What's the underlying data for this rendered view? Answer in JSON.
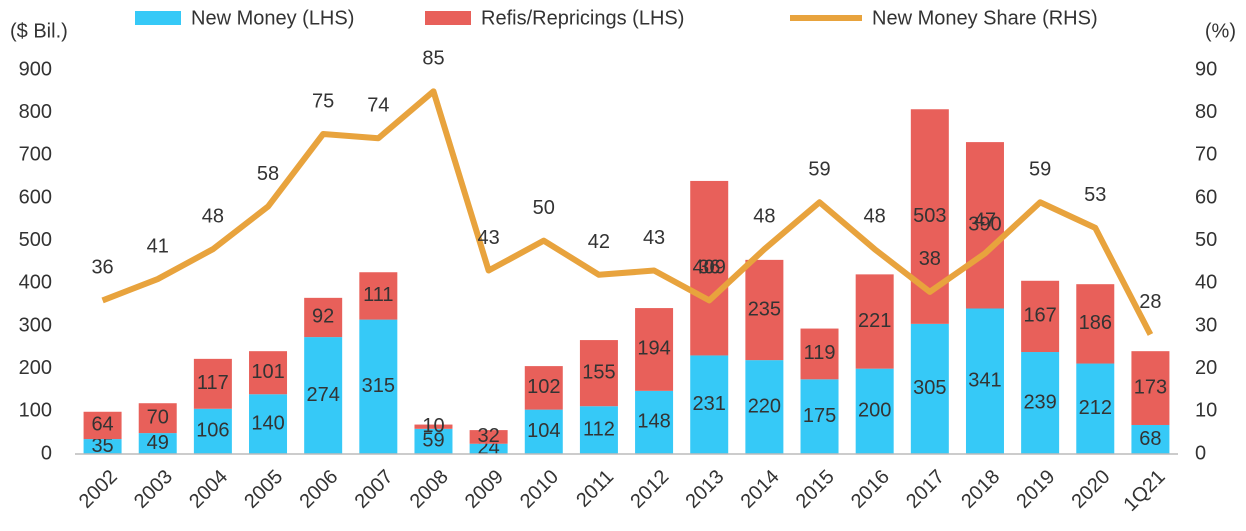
{
  "chart_data": {
    "type": "bar",
    "stacked": true,
    "y_label": "($ Bil.)",
    "y2_label": "(%)",
    "categories": [
      "2002",
      "2003",
      "2004",
      "2005",
      "2006",
      "2007",
      "2008",
      "2009",
      "2010",
      "2011",
      "2012",
      "2013",
      "2014",
      "2015",
      "2016",
      "2017",
      "2018",
      "2019",
      "2020",
      "1Q21"
    ],
    "series": [
      {
        "name": "New Money (LHS)",
        "color": "#36c9f7",
        "values": [
          35,
          49,
          106,
          140,
          274,
          315,
          59,
          24,
          104,
          112,
          148,
          231,
          220,
          175,
          200,
          305,
          341,
          239,
          212,
          68
        ]
      },
      {
        "name": "Refis/Repricings (LHS)",
        "color": "#e8605a",
        "values": [
          64,
          70,
          117,
          101,
          92,
          111,
          10,
          32,
          102,
          155,
          194,
          409,
          235,
          119,
          221,
          503,
          390,
          167,
          186,
          173
        ]
      },
      {
        "name": "New Money Share (RHS)",
        "color": "#e8a33d",
        "type": "line",
        "axis": "y2",
        "values": [
          36,
          41,
          48,
          58,
          75,
          74,
          85,
          43,
          50,
          42,
          43,
          36,
          48,
          59,
          48,
          38,
          47,
          59,
          53,
          28
        ]
      }
    ],
    "ylim": [
      0,
      900
    ],
    "yticks": [
      0,
      100,
      200,
      300,
      400,
      500,
      600,
      700,
      800,
      900
    ],
    "y2lim": [
      0,
      90
    ],
    "y2ticks": [
      0,
      10,
      20,
      30,
      40,
      50,
      60,
      70,
      80,
      90
    ]
  }
}
